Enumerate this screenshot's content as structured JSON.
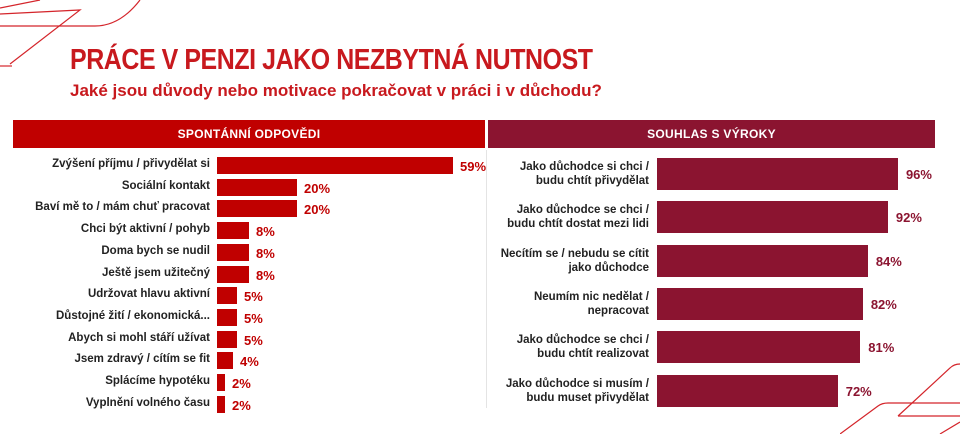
{
  "title": "PRÁCE V PENZI JAKO NEZBYTNÁ NUTNOST",
  "subtitle": "Jaké jsou důvody nebo motivace pokračovat v práci i v důchodu?",
  "colors": {
    "accent_red": "#c00000",
    "accent_wine": "#8b1430",
    "title_red": "#c8191e"
  },
  "chart_data": [
    {
      "type": "bar",
      "orientation": "horizontal",
      "title": "SPONTÁNNÍ ODPOVĚDI",
      "categories": [
        "Zvýšení příjmu / přivydělat si",
        "Sociální kontakt",
        "Baví mě to / mám chuť pracovat",
        "Chci být aktivní / pohyb",
        "Doma bych se nudil",
        "Ještě jsem užitečný",
        "Udržovat hlavu aktivní",
        "Důstojné žití / ekonomická...",
        "Abych si mohl stáří užívat",
        "Jsem zdravý / cítím se fit",
        "Splácíme hypotéku",
        "Vyplnění volného času"
      ],
      "values": [
        59,
        20,
        20,
        8,
        8,
        8,
        5,
        5,
        5,
        4,
        2,
        2
      ],
      "value_labels": [
        "59%",
        "20%",
        "20%",
        "8%",
        "8%",
        "8%",
        "5%",
        "5%",
        "5%",
        "4%",
        "2%",
        "2%"
      ],
      "unit": "%",
      "color": "#c00000",
      "grid": false
    },
    {
      "type": "bar",
      "orientation": "horizontal",
      "title": "SOUHLAS S VÝROKY",
      "categories": [
        "Jako důchodce si chci / budu chtít přivydělat",
        "Jako důchodce se chci / budu chtít dostat mezi lidi",
        "Necítím se / nebudu se cítit jako důchodce",
        "Neumím nic nedělat / nepracovat",
        "Jako důchodce se chci / budu chtít realizovat",
        "Jako důchodce si musím / budu muset přivydělat"
      ],
      "category_lines": [
        [
          "Jako důchodce si chci /",
          "budu chtít přivydělat"
        ],
        [
          "Jako důchodce se chci /",
          "budu chtít dostat mezi lidi"
        ],
        [
          "Necítím se / nebudu se cítit",
          "jako důchodce"
        ],
        [
          "Neumím nic nedělat /",
          "nepracovat"
        ],
        [
          "Jako důchodce se chci /",
          "budu chtít realizovat"
        ],
        [
          "Jako důchodce si musím /",
          "budu muset přivydělat"
        ]
      ],
      "values": [
        96,
        92,
        84,
        82,
        81,
        72
      ],
      "value_labels": [
        "96%",
        "92%",
        "84%",
        "82%",
        "81%",
        "72%"
      ],
      "unit": "%",
      "color": "#8b1430",
      "grid": false
    }
  ]
}
